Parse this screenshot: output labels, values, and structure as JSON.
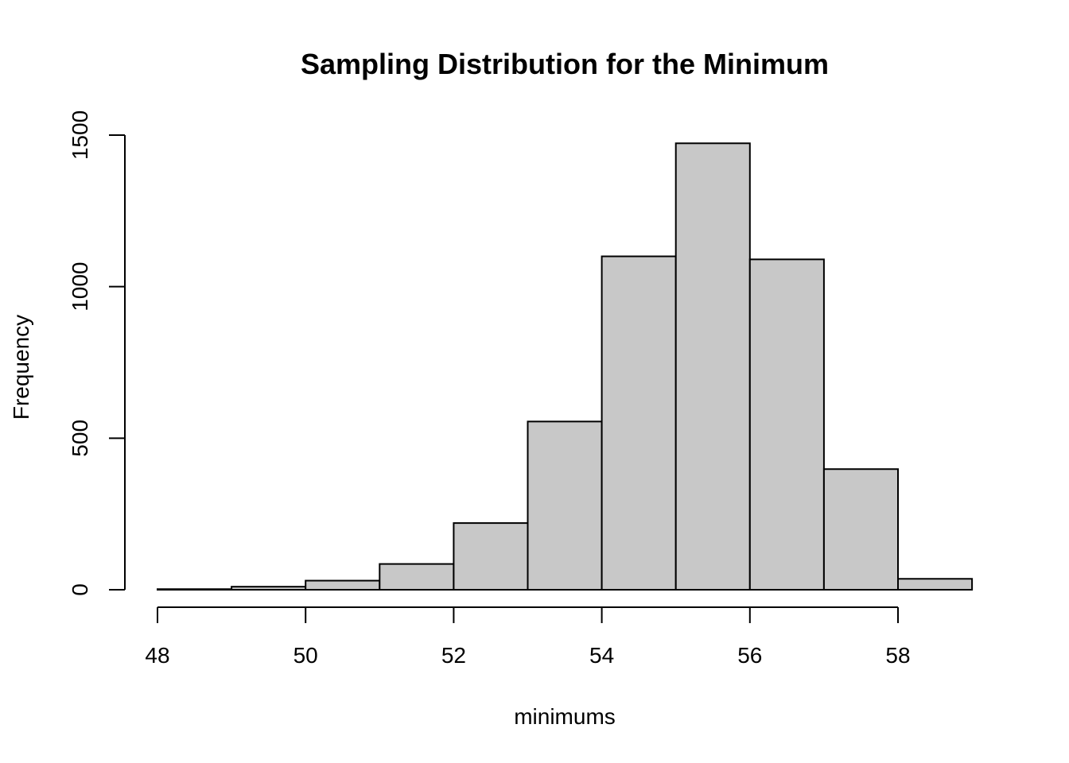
{
  "chart_data": {
    "type": "bar",
    "title": "Sampling Distribution for the Minimum",
    "xlabel": "minimums",
    "ylabel": "Frequency",
    "bin_edges": [
      48,
      49,
      50,
      51,
      52,
      53,
      54,
      55,
      56,
      57,
      58,
      59
    ],
    "values": [
      2,
      10,
      30,
      85,
      220,
      555,
      1100,
      1473,
      1090,
      398,
      36
    ],
    "xlim": [
      48,
      59
    ],
    "ylim": [
      0,
      1500
    ],
    "xticks": [
      "48",
      "50",
      "52",
      "54",
      "56",
      "58"
    ],
    "yticks": [
      "0",
      "500",
      "1000",
      "1500"
    ],
    "bar_color": "#c8c8c8",
    "grid": false
  }
}
